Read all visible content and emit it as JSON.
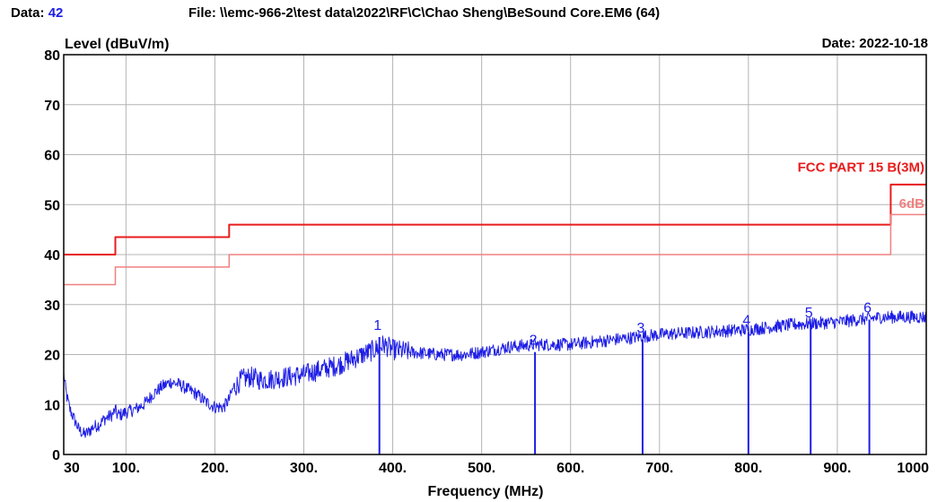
{
  "header": {
    "data_label": "Data:",
    "data_value": "42",
    "file_label": "File:",
    "file_path": "\\\\emc-966-2\\test data\\2022\\RF\\C\\Chao Sheng\\BeSound Core.EM6  (64)",
    "date_label": "Date:",
    "date_value": "2022-10-18"
  },
  "colors": {
    "trace": "#1e1ee6",
    "limit": "#e81c1c",
    "margin": "#f08080",
    "grid": "#b4b4b4",
    "header_value": "#1e1ee6"
  },
  "chart_data": {
    "type": "line",
    "title": "",
    "xlabel": "Frequency (MHz)",
    "ylabel": "Level (dBuV/m)",
    "xlim": [
      30,
      1000
    ],
    "ylim": [
      0,
      80
    ],
    "x_ticks": [
      30,
      100,
      200,
      300,
      400,
      500,
      600,
      700,
      800,
      900,
      1000
    ],
    "x_tick_labels": [
      "30",
      "100.",
      "200.",
      "300.",
      "400.",
      "500.",
      "600.",
      "700.",
      "800.",
      "900.",
      "1000"
    ],
    "y_ticks": [
      0,
      10,
      20,
      30,
      40,
      50,
      60,
      70,
      80
    ],
    "grid": true,
    "series": [
      {
        "name": "FCC PART 15 B(3M)",
        "kind": "limit",
        "x": [
          30,
          88,
          88,
          216,
          216,
          960,
          960,
          1000
        ],
        "y": [
          40,
          40,
          43.5,
          43.5,
          46,
          46,
          54,
          54
        ]
      },
      {
        "name": "6dB",
        "kind": "margin",
        "x": [
          30,
          88,
          88,
          216,
          216,
          960,
          960,
          1000
        ],
        "y": [
          34,
          34,
          37.5,
          37.5,
          40,
          40,
          48,
          48
        ]
      },
      {
        "name": "",
        "kind": "trace",
        "x": [
          30,
          33,
          37,
          42,
          47,
          53,
          58,
          63,
          70,
          75,
          80,
          85,
          88,
          90,
          95,
          100,
          110,
          120,
          130,
          140,
          150,
          160,
          170,
          180,
          190,
          200,
          210,
          216,
          220,
          230,
          240,
          250,
          260,
          280,
          300,
          320,
          340,
          360,
          380,
          390,
          400,
          420,
          450,
          480,
          500,
          530,
          560,
          600,
          650,
          700,
          750,
          800,
          850,
          900,
          950,
          1000
        ],
        "y": [
          16,
          12,
          9,
          7,
          5,
          4,
          4.5,
          5.5,
          6,
          7,
          7.5,
          8,
          9,
          8,
          8,
          8.5,
          9,
          10,
          12,
          13.5,
          14.5,
          14,
          13,
          12,
          10.5,
          9.5,
          9.5,
          11,
          13,
          15,
          15.5,
          15,
          15,
          15.5,
          16,
          17,
          18,
          19.5,
          21,
          22,
          21,
          20.5,
          20,
          20,
          20.5,
          21.5,
          22,
          22,
          23,
          24,
          24.5,
          25,
          26,
          26.5,
          27.5,
          27.5
        ]
      }
    ],
    "markers": [
      {
        "label": "1",
        "x": 385,
        "y": 23.5
      },
      {
        "label": "2",
        "x": 560,
        "y": 20.5
      },
      {
        "label": "3",
        "x": 681,
        "y": 23
      },
      {
        "label": "4",
        "x": 800,
        "y": 24.5
      },
      {
        "label": "5",
        "x": 870,
        "y": 26
      },
      {
        "label": "6",
        "x": 936,
        "y": 27
      }
    ],
    "annotations": [
      {
        "text": "FCC PART 15 B(3M)",
        "series": "limit"
      },
      {
        "text": "6dB",
        "series": "margin"
      }
    ]
  }
}
